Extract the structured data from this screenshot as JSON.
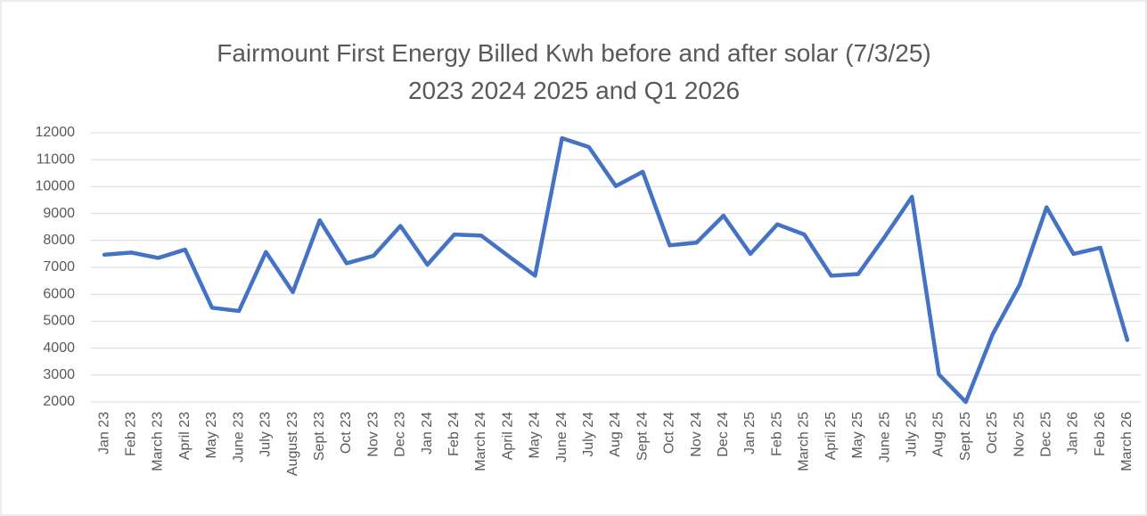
{
  "chart_data": {
    "type": "line",
    "title": [
      "Fairmount First Energy Billed Kwh before and after solar (7/3/25)",
      "2023 2024 2025 and Q1 2026"
    ],
    "categories": [
      "Jan 23",
      "Feb 23",
      "March 23",
      "April 23",
      "May 23",
      "June 23",
      "July 23",
      "August 23",
      "Sept 23",
      "Oct 23",
      "Nov 23",
      "Dec 23",
      "Jan 24",
      "Feb 24",
      "March 24",
      "April 24",
      "May 24",
      "June 24",
      "July 24",
      "Aug 24",
      "Sept 24",
      "Oct 24",
      "Nov 24",
      "Dec 24",
      "Jan 25",
      "Feb 25",
      "March 25",
      "April 25",
      "May 25",
      "June 25",
      "July 25",
      "Aug 25",
      "Sept 25",
      "Oct 25",
      "Nov 25",
      "Dec 25",
      "Jan 26",
      "Feb 26",
      "March 26"
    ],
    "values": [
      7470,
      7550,
      7350,
      7660,
      5500,
      5380,
      7570,
      6080,
      8750,
      7150,
      7430,
      8540,
      7100,
      8220,
      8180,
      7430,
      6690,
      11800,
      11470,
      10020,
      10550,
      7820,
      7920,
      8920,
      7500,
      8600,
      8220,
      6690,
      6750,
      8150,
      9620,
      3020,
      2000,
      4520,
      6350,
      9230,
      7500,
      7730,
      4300
    ],
    "color": "#4472c4",
    "ylim": [
      2000,
      12000
    ],
    "yticks": [
      2000,
      3000,
      4000,
      5000,
      6000,
      7000,
      8000,
      9000,
      10000,
      11000,
      12000
    ],
    "grid": true
  }
}
